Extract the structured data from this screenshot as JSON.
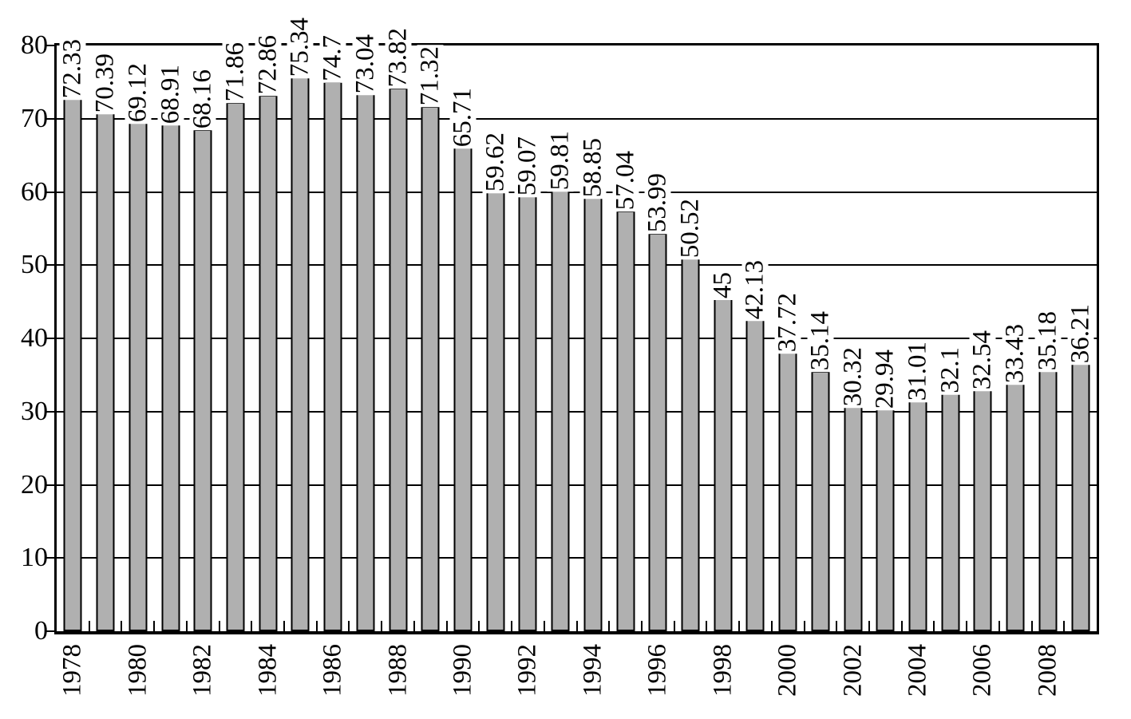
{
  "chart_data": {
    "type": "bar",
    "title": "",
    "xlabel": "",
    "ylabel": "",
    "x": [
      1978,
      1979,
      1980,
      1981,
      1982,
      1983,
      1984,
      1985,
      1986,
      1987,
      1988,
      1989,
      1990,
      1991,
      1992,
      1993,
      1994,
      1995,
      1996,
      1997,
      1998,
      1999,
      2000,
      2001,
      2002,
      2003,
      2004,
      2005,
      2006,
      2007,
      2008,
      2009
    ],
    "values": [
      72.33,
      70.39,
      69.12,
      68.91,
      68.16,
      71.86,
      72.86,
      75.34,
      74.7,
      73.04,
      73.82,
      71.32,
      65.71,
      59.62,
      59.07,
      59.81,
      58.85,
      57.04,
      53.99,
      50.52,
      45,
      42.13,
      37.72,
      35.14,
      30.32,
      29.94,
      31.01,
      32.1,
      32.54,
      33.43,
      35.18,
      36.21
    ],
    "bar_labels": [
      "72.33",
      "70.39",
      "69.12",
      "68.91",
      "68.16",
      "71.86",
      "72.86",
      "75.34",
      "74.7",
      "73.04",
      "73.82",
      "71.32",
      "65.71",
      "59.62",
      "59.07",
      "59.81",
      "58.85",
      "57.04",
      "53.99",
      "50.52",
      "45",
      "42.13",
      "37.72",
      "35.14",
      "30.32",
      "29.94",
      "31.01",
      "32.1",
      "32.54",
      "33.43",
      "35.18",
      "36.21"
    ],
    "x_tick_labels": [
      "1978",
      "1980",
      "1982",
      "1984",
      "1986",
      "1988",
      "1990",
      "1992",
      "1994",
      "1996",
      "1998",
      "2000",
      "2002",
      "2004",
      "2006",
      "2008"
    ],
    "x_tick_label_every": 2,
    "yticks": [
      0,
      10,
      20,
      30,
      40,
      50,
      60,
      70,
      80
    ],
    "ylim": [
      0,
      80
    ],
    "grid": "horizontal",
    "legend": "none",
    "bar_fill": "#b0b0b0",
    "bar_stroke": "#000000",
    "axis_color": "#000000",
    "background": "#ffffff",
    "bar_label_rotation_deg": 90,
    "x_label_rotation_deg": 90
  }
}
